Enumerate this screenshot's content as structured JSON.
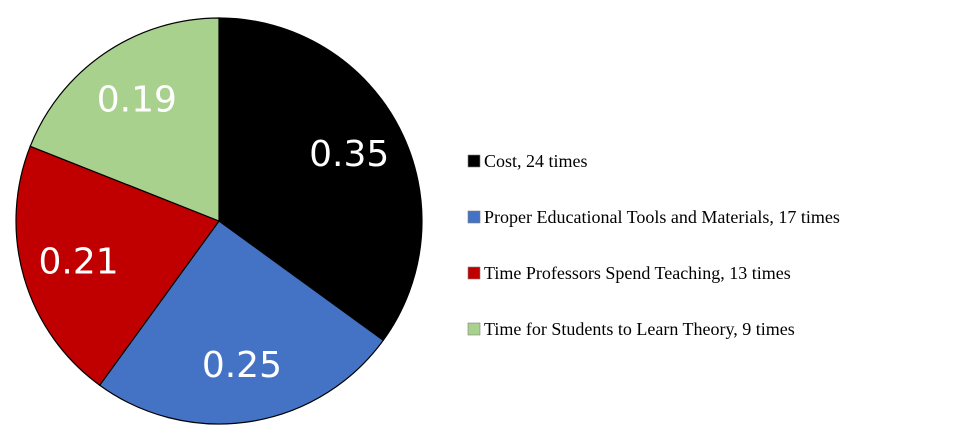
{
  "chart_data": {
    "type": "pie",
    "title": "",
    "categories": [
      "Cost, 24 times",
      "Proper Educational Tools and Materials, 17 times",
      "Time Professors Spend Teaching, 13 times",
      "Time for Students to Learn Theory, 9 times"
    ],
    "values": [
      0.35,
      0.25,
      0.21,
      0.19
    ],
    "data_labels": [
      "0.35",
      "0.25",
      "0.21",
      "0.19"
    ],
    "colors": [
      "#000000",
      "#4472C4",
      "#C00000",
      "#A9D18E"
    ],
    "slice_outline": "#000000",
    "start_angle": "12 o'clock",
    "direction": "clockwise",
    "legend_position": "right"
  }
}
